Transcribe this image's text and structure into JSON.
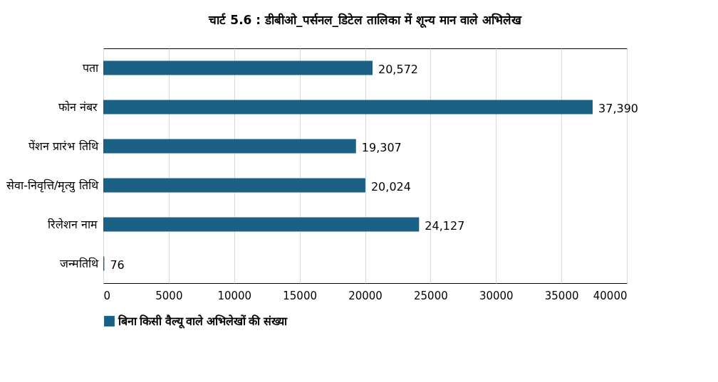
{
  "chart_data": {
    "type": "bar",
    "orientation": "horizontal",
    "title": "चार्ट 5.6 : डीबीओ_पर्सनल_डिटेल तालिका में शून्य मान वाले अभिलेख",
    "categories": [
      "पता",
      "फोन नंबर",
      "पेंशन प्रारंभ तिथि",
      "सेवा-निवृत्ति/मृत्यु तिथि",
      "रिलेशन नाम",
      "जन्मतिथि"
    ],
    "series": [
      {
        "name": "बिना किसी वैल्यू वाले अभिलेखों की संख्या",
        "color": "#1a6185",
        "values": [
          20572,
          37390,
          19307,
          20024,
          24127,
          76
        ]
      }
    ],
    "xlim": [
      0,
      40000
    ],
    "xticks": [
      0,
      5000,
      10000,
      15000,
      20000,
      25000,
      30000,
      35000,
      40000
    ],
    "value_labels": [
      "20,572",
      "37,390",
      "19,307",
      "20,024",
      "24,127",
      "76"
    ],
    "grid": "x",
    "legend": "bottom"
  }
}
